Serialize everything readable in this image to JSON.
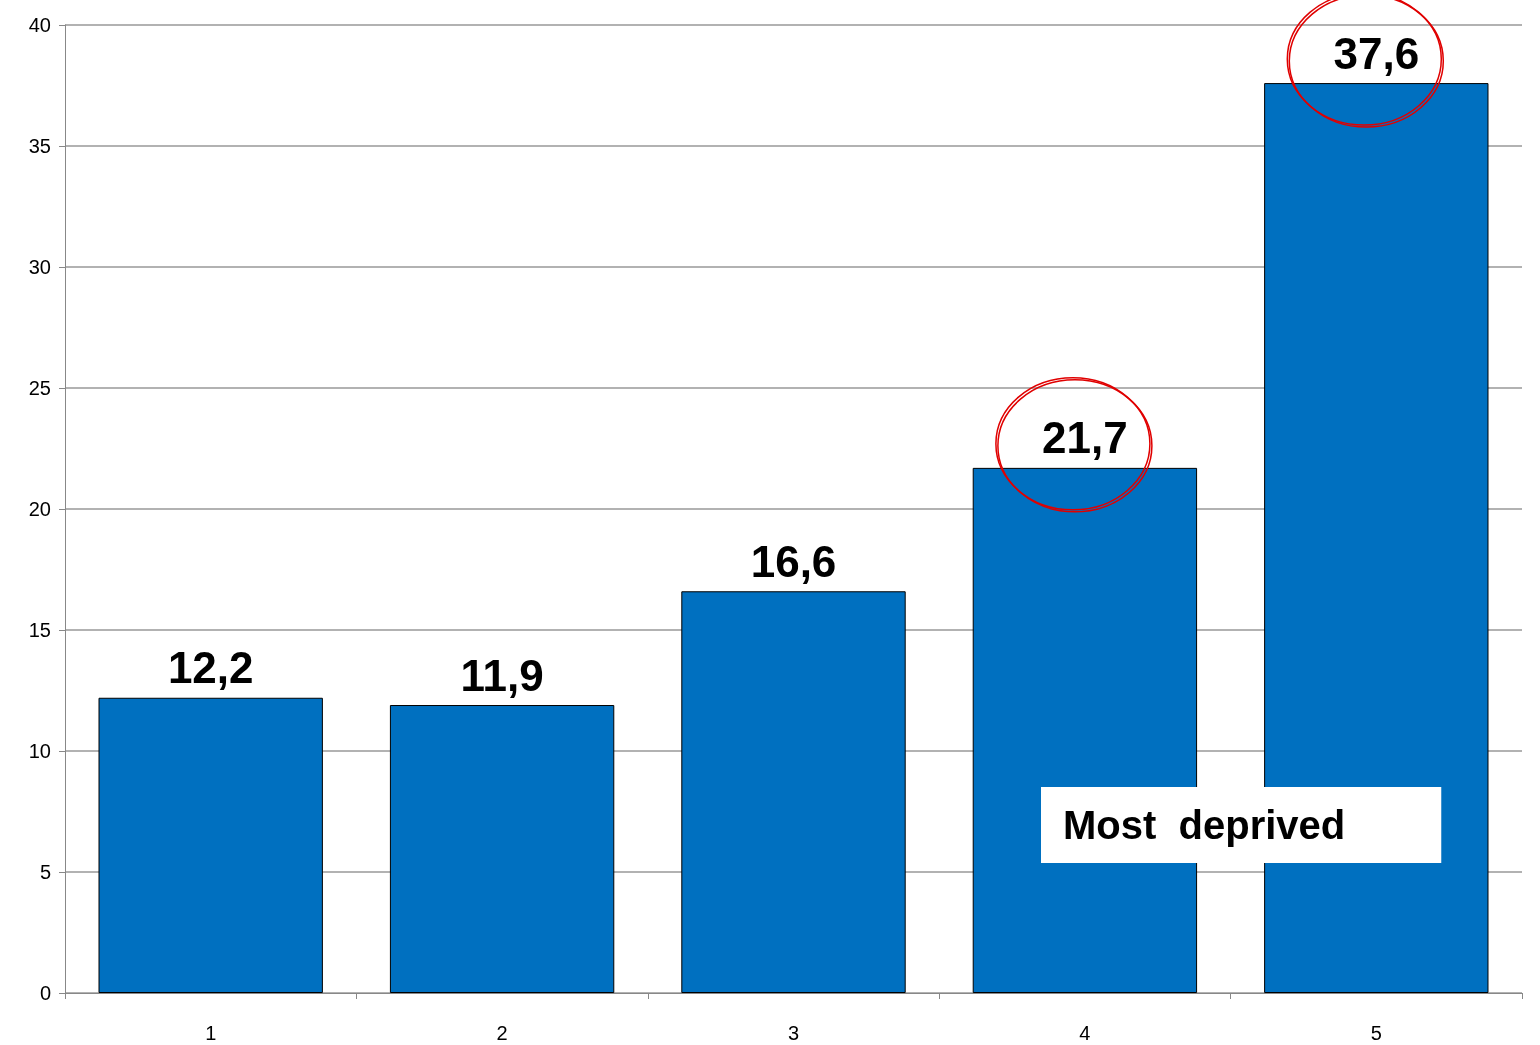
{
  "chart_data": {
    "type": "bar",
    "categories": [
      "1",
      "2",
      "3",
      "4",
      "5"
    ],
    "values": [
      12.2,
      11.9,
      16.6,
      21.7,
      37.6
    ],
    "value_labels": [
      "12,2",
      "11,9",
      "16,6",
      "21,7",
      "37,6"
    ],
    "color": "#0070c0",
    "ylim": [
      0,
      40
    ],
    "yticks": [
      0,
      5,
      10,
      15,
      20,
      25,
      30,
      35,
      40
    ],
    "grid": "y",
    "annotations": [
      "Most  deprived"
    ]
  }
}
